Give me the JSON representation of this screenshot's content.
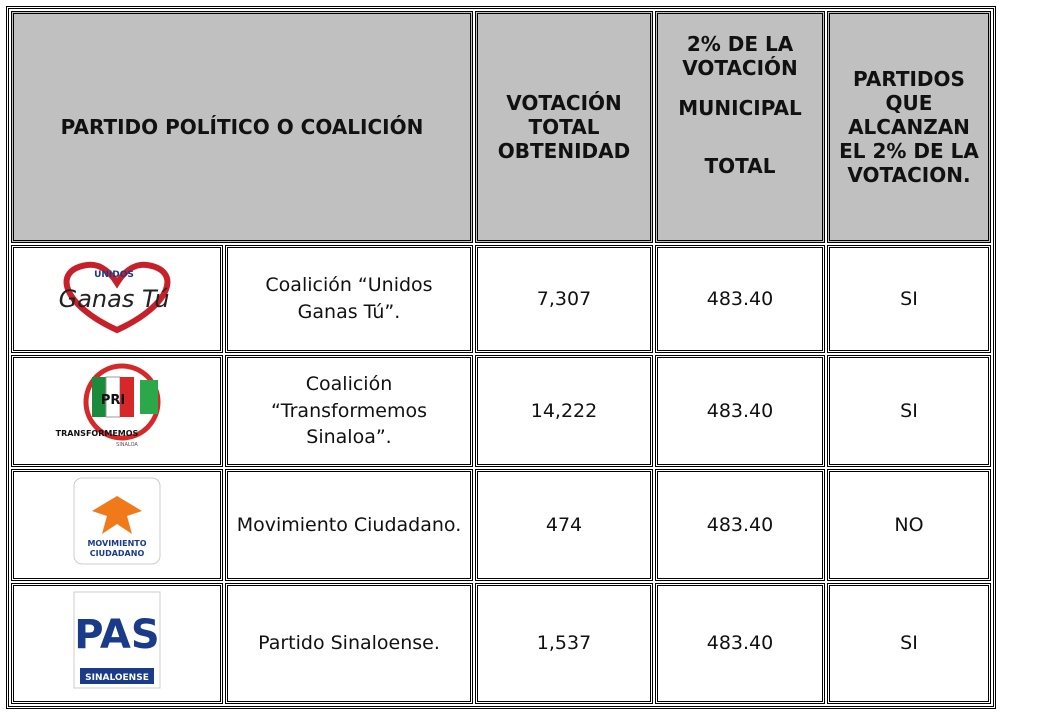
{
  "header": {
    "party": "PARTIDO POLÍTICO O COALICIÓN",
    "votes": "VOTACIÓN TOTAL OBTENIDAD",
    "two_percent": [
      "2% DE LA VOTACIÓN",
      "MUNICIPAL",
      "TOTAL"
    ],
    "reached": "PARTIDOS QUE ALCANZAN EL 2% DE LA VOTACION."
  },
  "table": {
    "rows": [
      {
        "logo": [
          "UNIDOS",
          "Ganas Tú"
        ],
        "name": "Coalición “Unidos Ganas Tú”.",
        "votes": "7,307",
        "two_percent": "483.40",
        "reached": "SI"
      },
      {
        "logo": [
          "PRI",
          "TRANSFORMEMOS",
          "SINALOA"
        ],
        "name": "Coalición “Transformemos Sinaloa”.",
        "votes": "14,222",
        "two_percent": "483.40",
        "reached": "SI"
      },
      {
        "logo": [
          "MOVIMIENTO",
          "CIUDADANO"
        ],
        "name": "Movimiento Ciudadano.",
        "votes": "474",
        "two_percent": "483.40",
        "reached": "NO"
      },
      {
        "logo": [
          "PAS",
          "SINALOENSE"
        ],
        "name": "Partido Sinaloense.",
        "votes": "1,537",
        "two_percent": "483.40",
        "reached": "SI"
      }
    ]
  }
}
